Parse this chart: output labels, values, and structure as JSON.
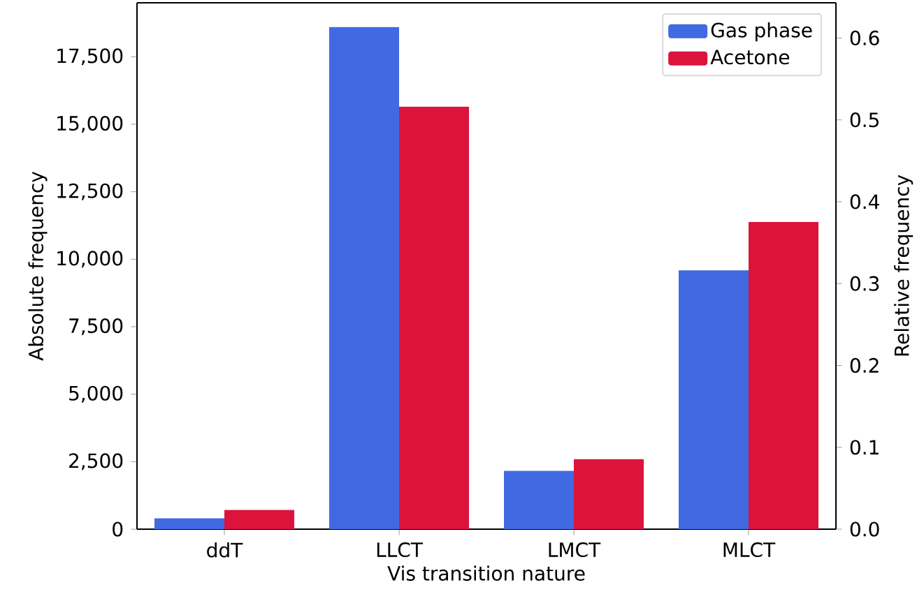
{
  "chart_data": {
    "type": "bar",
    "xlabel": "Vis transition nature",
    "ylabel": "Absolute frequency",
    "y2label": "Relative frequency",
    "categories": [
      "ddT",
      "LLCT",
      "LMCT",
      "MLCT"
    ],
    "series": [
      {
        "name": "Gas phase",
        "color": "#4169e1",
        "values": [
          400,
          18600,
          2160,
          9590
        ]
      },
      {
        "name": "Acetone",
        "color": "#dc143c",
        "values": [
          710,
          15650,
          2590,
          11380
        ]
      }
    ],
    "ylim": [
      0,
      19500
    ],
    "yticks": [
      0,
      {
        "value": 2500,
        "label": "2,500"
      },
      {
        "value": 5000,
        "label": "5,000"
      },
      {
        "value": 7500,
        "label": "7,500"
      },
      {
        "value": 10000,
        "label": "10,000"
      },
      {
        "value": 12500,
        "label": "12,500"
      },
      {
        "value": 15000,
        "label": "15,000"
      },
      {
        "value": 17500,
        "label": "17,500"
      }
    ],
    "y2lim": [
      0,
      0.643
    ],
    "y2ticks": [
      {
        "value": 0,
        "label": "0.0"
      },
      0.1,
      0.2,
      0.3,
      0.4,
      0.5,
      0.6
    ],
    "legend": "top right",
    "grid": false
  }
}
